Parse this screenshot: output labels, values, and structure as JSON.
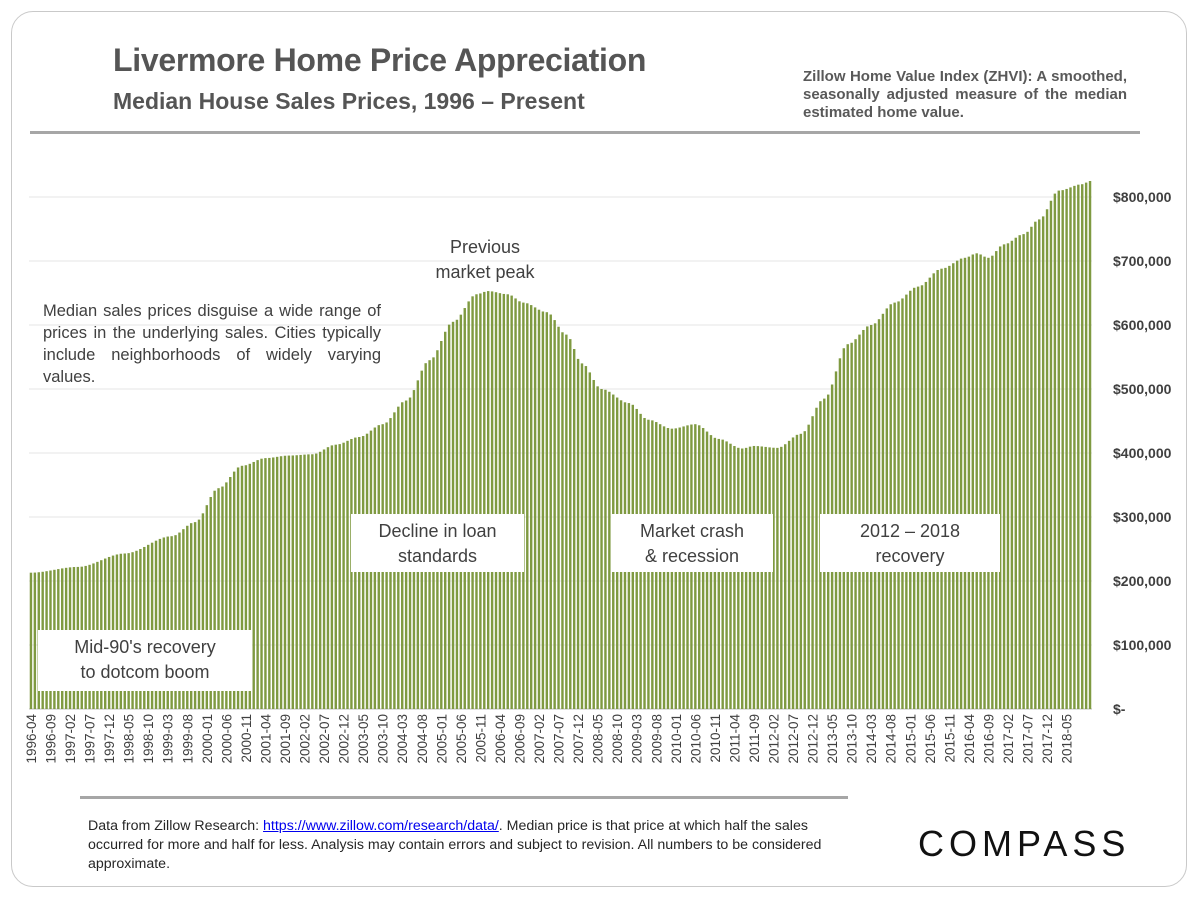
{
  "header": {
    "title": "Livermore Home Price Appreciation",
    "subtitle": "Median House Sales Prices, 1996 – Present",
    "zhvi_note": "Zillow Home Value Index (ZHVI): A smoothed, seasonally adjusted measure of the median estimated home value."
  },
  "annotations": {
    "side_note": "Median sales prices disguise a wide range of prices in the underlying sales. Cities typically include neighborhoods of widely varying values.",
    "peak": [
      "Previous",
      "market peak"
    ],
    "boxes": [
      {
        "lines": [
          "Mid-90's recovery",
          "to dotcom boom"
        ]
      },
      {
        "lines": [
          "Decline in loan",
          "standards"
        ]
      },
      {
        "lines": [
          "Market crash",
          "& recession"
        ]
      },
      {
        "lines": [
          "2012 – 2018",
          "recovery"
        ]
      }
    ]
  },
  "footer": {
    "prefix": "Data from Zillow Research: ",
    "link": "https://www.zillow.com/research/data/",
    "suffix": ". Median price is that price at which half the sales occurred for more and half for less. Analysis may contain errors and subject to revision. All numbers to be considered approximate."
  },
  "brand": {
    "logo_text": "COMPASS"
  },
  "colors": {
    "bar": "#7f9a41",
    "gridline": "#e6e6e6",
    "text": "#404040"
  },
  "chart_data": {
    "type": "bar",
    "title": "Livermore Home Price Appreciation",
    "subtitle": "Median House Sales Prices, 1996 – Present",
    "xlabel": "",
    "ylabel": "",
    "ylim": [
      0,
      850000
    ],
    "y_ticks": [
      0,
      100000,
      200000,
      300000,
      400000,
      500000,
      600000,
      700000,
      800000
    ],
    "y_tick_labels": [
      "$-",
      "$100,000",
      "$200,000",
      "$300,000",
      "$400,000",
      "$500,000",
      "$600,000",
      "$700,000",
      "$800,000"
    ],
    "x_start": "1996-04",
    "x_end": "2018-11",
    "x_tick_labels": [
      "1996-04",
      "1996-09",
      "1997-02",
      "1997-07",
      "1997-12",
      "1998-05",
      "1998-10",
      "1999-03",
      "1999-08",
      "2000-01",
      "2000-06",
      "2000-11",
      "2001-04",
      "2001-09",
      "2002-02",
      "2002-07",
      "2002-12",
      "2003-05",
      "2003-10",
      "2004-03",
      "2004-08",
      "2005-01",
      "2005-06",
      "2005-11",
      "2006-04",
      "2006-09",
      "2007-02",
      "2007-07",
      "2007-12",
      "2008-05",
      "2008-10",
      "2009-03",
      "2009-08",
      "2010-01",
      "2010-06",
      "2010-11",
      "2011-04",
      "2011-09",
      "2012-02",
      "2012-07",
      "2012-12",
      "2013-05",
      "2013-10",
      "2014-03",
      "2014-08",
      "2015-01",
      "2015-06",
      "2015-11",
      "2016-04",
      "2016-09",
      "2017-02",
      "2017-07",
      "2017-12",
      "2018-05"
    ],
    "grid": true,
    "series": [
      {
        "name": "",
        "anchors": [
          [
            "1996-04",
            213000
          ],
          [
            "1997-04",
            222000
          ],
          [
            "1998-04",
            243000
          ],
          [
            "1999-04",
            270000
          ],
          [
            "1999-10",
            292000
          ],
          [
            "2000-04",
            345000
          ],
          [
            "2000-10",
            380000
          ],
          [
            "2001-04",
            392000
          ],
          [
            "2001-10",
            396000
          ],
          [
            "2002-04",
            398000
          ],
          [
            "2002-10",
            413000
          ],
          [
            "2003-04",
            425000
          ],
          [
            "2003-10",
            445000
          ],
          [
            "2004-04",
            482000
          ],
          [
            "2004-10",
            545000
          ],
          [
            "2005-04",
            605000
          ],
          [
            "2005-10",
            648000
          ],
          [
            "2006-01",
            653000
          ],
          [
            "2006-06",
            648000
          ],
          [
            "2006-10",
            635000
          ],
          [
            "2007-04",
            620000
          ],
          [
            "2007-09",
            585000
          ],
          [
            "2008-01",
            540000
          ],
          [
            "2008-06",
            500000
          ],
          [
            "2009-01",
            478000
          ],
          [
            "2009-06",
            452000
          ],
          [
            "2009-12",
            438000
          ],
          [
            "2010-06",
            445000
          ],
          [
            "2010-12",
            422000
          ],
          [
            "2011-06",
            407000
          ],
          [
            "2011-09",
            411000
          ],
          [
            "2012-03",
            408000
          ],
          [
            "2012-09",
            430000
          ],
          [
            "2013-03",
            485000
          ],
          [
            "2013-09",
            570000
          ],
          [
            "2014-03",
            600000
          ],
          [
            "2014-09",
            635000
          ],
          [
            "2015-03",
            660000
          ],
          [
            "2015-09",
            688000
          ],
          [
            "2016-03",
            705000
          ],
          [
            "2016-06",
            712000
          ],
          [
            "2016-09",
            705000
          ],
          [
            "2017-01",
            726000
          ],
          [
            "2017-06",
            742000
          ],
          [
            "2017-10",
            765000
          ],
          [
            "2018-03",
            810000
          ],
          [
            "2018-09",
            820000
          ],
          [
            "2018-11",
            825000
          ]
        ]
      }
    ]
  }
}
